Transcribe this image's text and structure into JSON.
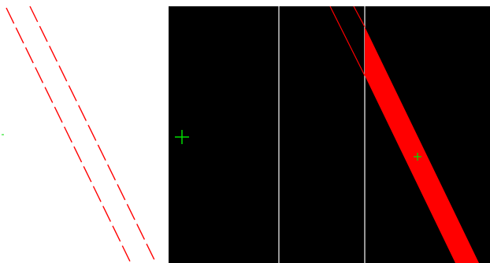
{
  "colors": {
    "left_background": "#ffffff",
    "right_background": "#000000",
    "band_stroke": "#ff0000",
    "band_fill": "#ff0000",
    "guide_line": "#c8c8c8",
    "crosshair": "#00dd00"
  },
  "icons": {
    "left_marker": "crosshair-dot-icon",
    "right_marker": "crosshair-icon",
    "band_marker": "crosshair-small-icon"
  }
}
